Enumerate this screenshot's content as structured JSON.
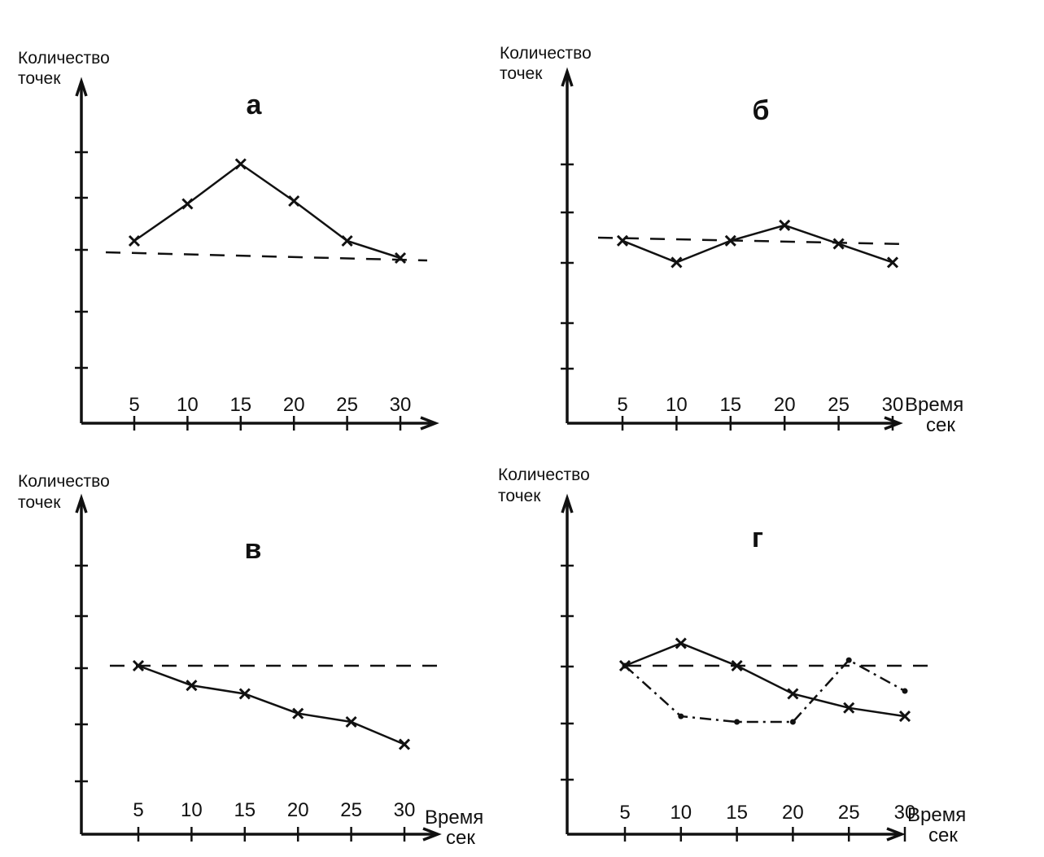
{
  "chart_data": [
    {
      "type": "line",
      "title": "а",
      "ylabel": [
        "Количество",
        "точек"
      ],
      "xlabel": [],
      "categories": [
        "5",
        "10",
        "15",
        "20",
        "25",
        "30"
      ],
      "x": [
        5,
        10,
        15,
        20,
        25,
        30
      ],
      "ylim": [
        0,
        6
      ],
      "reference": 3,
      "series": [
        {
          "values": [
            3.2,
            3.85,
            4.55,
            3.9,
            3.2,
            2.9
          ],
          "style": "solid",
          "marker": "x"
        }
      ]
    },
    {
      "type": "line",
      "title": "б",
      "ylabel": [
        "Количество",
        "точек"
      ],
      "xlabel": [
        "Время",
        "сек"
      ],
      "categories": [
        "5",
        "10",
        "15",
        "20",
        "25",
        "30"
      ],
      "x": [
        5,
        10,
        15,
        20,
        25,
        30
      ],
      "ylim": [
        0,
        6
      ],
      "reference": 3,
      "series": [
        {
          "values": [
            2.95,
            2.6,
            2.95,
            3.2,
            2.9,
            2.6
          ],
          "style": "solid",
          "marker": "x"
        }
      ]
    },
    {
      "type": "line",
      "title": "в",
      "ylabel": [
        "Количество",
        "точек"
      ],
      "xlabel": [
        "Время",
        "сек"
      ],
      "categories": [
        "5",
        "10",
        "15",
        "20",
        "25",
        "30"
      ],
      "x": [
        5,
        10,
        15,
        20,
        25,
        30
      ],
      "ylim": [
        0,
        6
      ],
      "reference": 3,
      "series": [
        {
          "values": [
            3.0,
            2.65,
            2.5,
            2.15,
            2.0,
            1.6
          ],
          "style": "solid",
          "marker": "x"
        }
      ]
    },
    {
      "type": "line",
      "title": "г",
      "ylabel": [
        "Количество",
        "точек"
      ],
      "xlabel": [
        "Время",
        "сек"
      ],
      "categories": [
        "5",
        "10",
        "15",
        "20",
        "25",
        "30"
      ],
      "x": [
        5,
        10,
        15,
        20,
        25,
        30
      ],
      "ylim": [
        0,
        6
      ],
      "reference": 3,
      "series": [
        {
          "values": [
            3.0,
            3.4,
            3.0,
            2.5,
            2.25,
            2.1
          ],
          "style": "solid",
          "marker": "x"
        },
        {
          "values": [
            3.0,
            2.1,
            2.0,
            2.0,
            3.1,
            2.55
          ],
          "style": "dashdot",
          "marker": "dot"
        }
      ]
    }
  ]
}
